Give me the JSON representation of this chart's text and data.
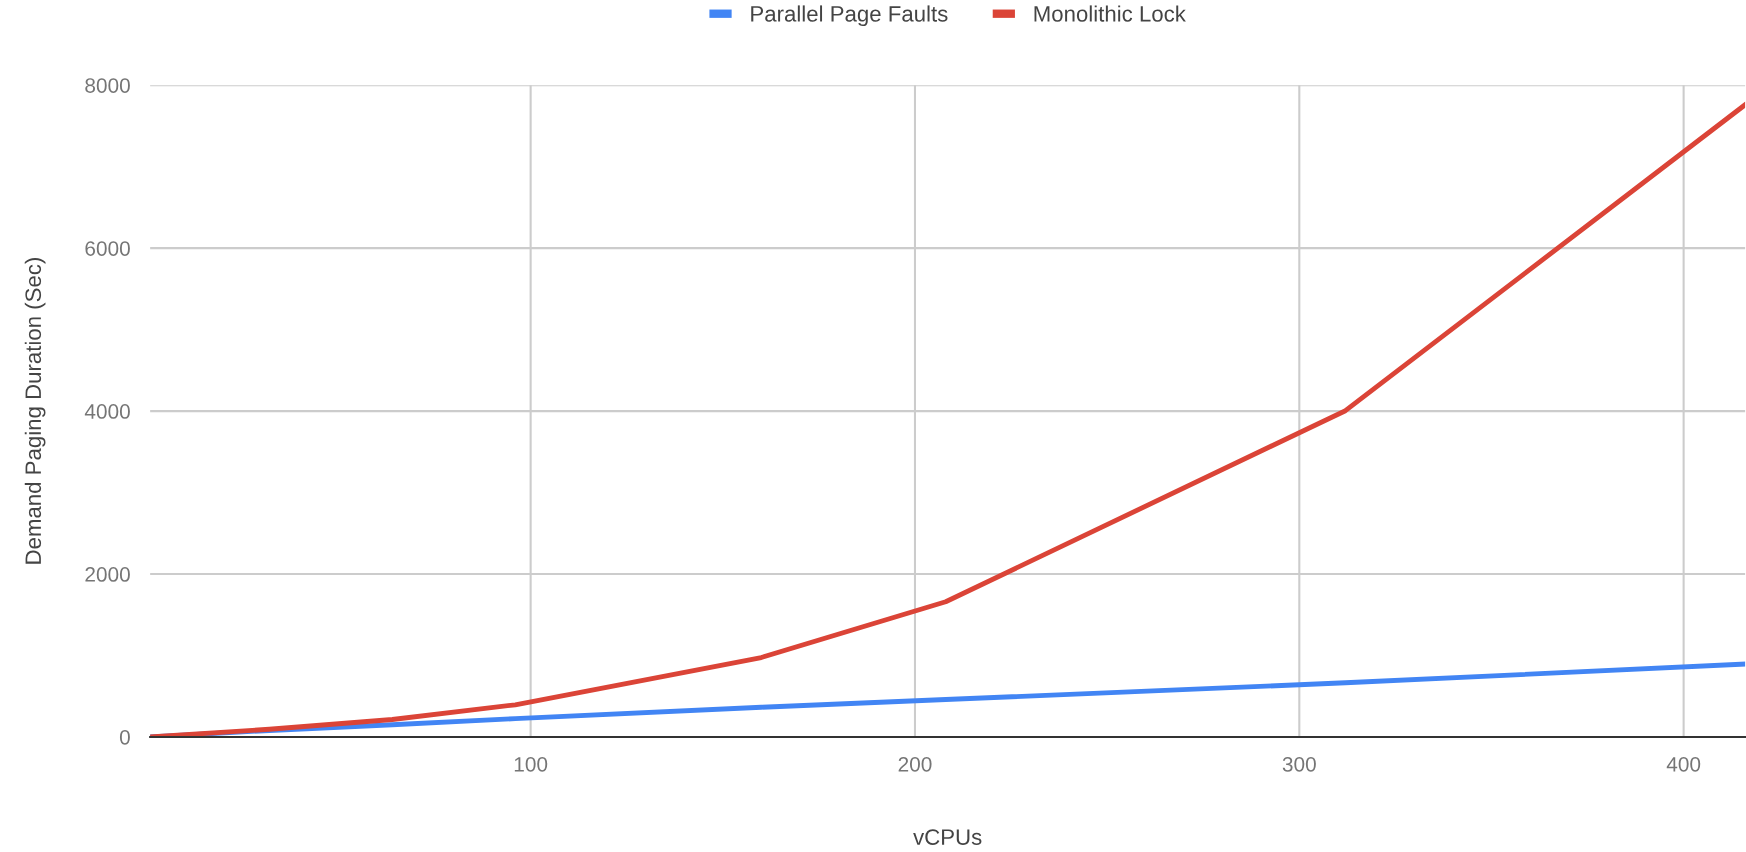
{
  "chart_data": {
    "type": "line",
    "xlabel": "vCPUs",
    "ylabel": "Demand Paging Duration (Sec)",
    "x": [
      1,
      32,
      64,
      96,
      160,
      208,
      312,
      416
    ],
    "series": [
      {
        "name": "Parallel Page Faults",
        "color": "#4285f4",
        "values": [
          0,
          80,
          150,
          225,
          365,
          460,
          665,
          895
        ]
      },
      {
        "name": "Monolithic Lock",
        "color": "#db4437",
        "values": [
          0,
          95,
          215,
          395,
          975,
          1660,
          4005,
          7760
        ]
      }
    ],
    "xlim": [
      1,
      416
    ],
    "xticks": [
      100,
      200,
      300,
      400
    ],
    "ylim": [
      0,
      8000
    ],
    "yticks": [
      0,
      2000,
      4000,
      6000,
      8000
    ],
    "grid": true,
    "legend": "top",
    "marker": "none",
    "line_style": "solid"
  }
}
